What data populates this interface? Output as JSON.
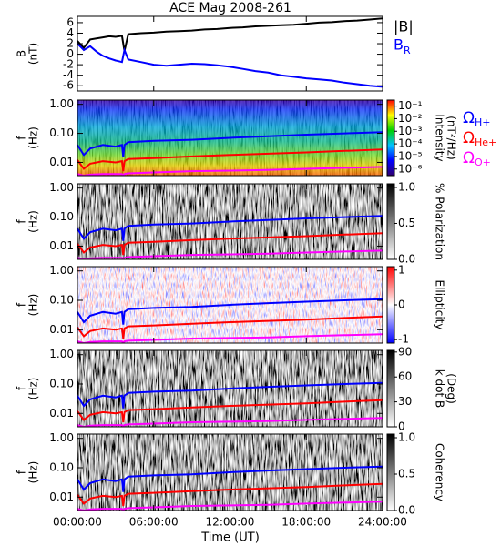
{
  "title": "ACE Mag 2008-261",
  "xlabel": "Time (UT)",
  "xlim": [
    0,
    24
  ],
  "xticks": [
    {
      "value": 0,
      "label": "00:00:00"
    },
    {
      "value": 6,
      "label": "06:00:00"
    },
    {
      "value": 12,
      "label": "12:00:00"
    },
    {
      "value": 18,
      "label": "18:00:00"
    },
    {
      "value": 24,
      "label": "24:00:00"
    }
  ],
  "gyrofrequencies": {
    "x": [
      0,
      0.5,
      1,
      2,
      3,
      3.5,
      3.6,
      3.7,
      4,
      6,
      9,
      12,
      15,
      18,
      21,
      24
    ],
    "series": [
      {
        "name": "Ω",
        "subscript": "H+",
        "color": "#0000ff",
        "values": [
          0.04,
          0.018,
          0.03,
          0.04,
          0.035,
          0.04,
          0.015,
          0.04,
          0.05,
          0.055,
          0.06,
          0.07,
          0.08,
          0.09,
          0.1,
          0.11
        ]
      },
      {
        "name": "Ω",
        "subscript": "He+",
        "color": "#ff0000",
        "values": [
          0.012,
          0.006,
          0.009,
          0.011,
          0.01,
          0.011,
          0.005,
          0.011,
          0.013,
          0.014,
          0.016,
          0.018,
          0.02,
          0.022,
          0.025,
          0.028
        ]
      },
      {
        "name": "Ω",
        "subscript": "O+",
        "color": "#ff00ff",
        "values": [
          0.004,
          0.0035,
          0.0038,
          0.004,
          0.004,
          0.004,
          0.0035,
          0.004,
          0.0042,
          0.0045,
          0.005,
          0.0052,
          0.0055,
          0.006,
          0.0065,
          0.007
        ]
      }
    ]
  },
  "chart_data": [
    {
      "type": "line",
      "ylabel": [
        "B",
        "(nT)"
      ],
      "ylim": [
        -7,
        7.2
      ],
      "yticks": [
        6,
        4,
        2,
        0,
        -2,
        -4,
        -6
      ],
      "x": [
        0,
        0.5,
        1,
        1.5,
        2,
        2.5,
        3,
        3.5,
        3.7,
        4,
        5,
        6,
        7,
        8,
        9,
        10,
        11,
        12,
        13,
        14,
        15,
        16,
        17,
        18,
        19,
        20,
        21,
        22,
        23,
        24
      ],
      "series": [
        {
          "name": "|B|",
          "color": "#000000",
          "values": [
            2.5,
            1.2,
            2.8,
            3.0,
            3.2,
            3.4,
            3.3,
            3.5,
            0.6,
            3.8,
            4.0,
            4.1,
            4.3,
            4.4,
            4.5,
            4.7,
            4.8,
            5.0,
            5.1,
            5.3,
            5.4,
            5.5,
            5.6,
            5.8,
            6.0,
            6.1,
            6.3,
            6.4,
            6.6,
            6.8
          ]
        },
        {
          "name": "B",
          "subscript": "R",
          "color": "#0000ff",
          "values": [
            2.0,
            0.8,
            1.5,
            0.5,
            -0.3,
            -0.8,
            -1.2,
            -1.5,
            0.8,
            -1.0,
            -1.5,
            -2.0,
            -2.2,
            -2.0,
            -1.8,
            -1.9,
            -2.1,
            -2.4,
            -2.8,
            -3.2,
            -3.5,
            -4.0,
            -4.3,
            -4.6,
            -4.8,
            -5.0,
            -5.4,
            -5.7,
            -6.0,
            -6.2
          ]
        }
      ]
    },
    {
      "type": "spectrogram",
      "texture": "intensity",
      "legend": true,
      "ylabel": [
        "f",
        "(Hz)"
      ],
      "log_y": true,
      "ylim": [
        0.0035,
        1.4
      ],
      "yticks": [
        {
          "value": 1,
          "label": "1.00"
        },
        {
          "value": 0.1,
          "label": "0.10"
        },
        {
          "value": 0.01,
          "label": "0.01"
        }
      ],
      "colorbar": {
        "label": [
          "Intensity",
          "(nT²/Hz)"
        ],
        "log": true,
        "lim": [
          3e-07,
          0.3
        ],
        "colors": [
          "#30006e",
          "#0000ff",
          "#00c0ff",
          "#00d000",
          "#ffff00",
          "#ff0000"
        ],
        "ticks": [
          {
            "value": 0.1,
            "label": "10⁻¹"
          },
          {
            "value": 0.01,
            "label": "10⁻²"
          },
          {
            "value": 0.001,
            "label": "10⁻³"
          },
          {
            "value": 0.0001,
            "label": "10⁻⁴"
          },
          {
            "value": 1e-05,
            "label": "10⁻⁵"
          },
          {
            "value": 1e-06,
            "label": "10⁻⁶"
          }
        ]
      }
    },
    {
      "type": "spectrogram",
      "texture": "gray",
      "ylabel": [
        "f",
        "(Hz)"
      ],
      "log_y": true,
      "ylim": [
        0.0035,
        1.4
      ],
      "yticks": [
        {
          "value": 1,
          "label": "1.00"
        },
        {
          "value": 0.1,
          "label": "0.10"
        },
        {
          "value": 0.01,
          "label": "0.01"
        }
      ],
      "colorbar": {
        "label": [
          "% Polarization"
        ],
        "log": false,
        "lim": [
          0,
          1.05
        ],
        "colors": [
          "#ffffff",
          "#000000"
        ],
        "ticks": [
          {
            "value": 1,
            "label": "1.0"
          },
          {
            "value": 0.5,
            "label": "0.5"
          },
          {
            "value": 0,
            "label": "0.0"
          }
        ]
      }
    },
    {
      "type": "spectrogram",
      "texture": "diverging",
      "ylabel": [
        "f",
        "(Hz)"
      ],
      "log_y": true,
      "ylim": [
        0.0035,
        1.4
      ],
      "yticks": [
        {
          "value": 1,
          "label": "1.00"
        },
        {
          "value": 0.1,
          "label": "0.10"
        },
        {
          "value": 0.01,
          "label": "0.01"
        }
      ],
      "colorbar": {
        "label": [
          "Ellipticity"
        ],
        "log": false,
        "lim": [
          -1.1,
          1.1
        ],
        "colors": [
          "#0000ff",
          "#ffffff",
          "#ff0000"
        ],
        "ticks": [
          1,
          0,
          -1
        ]
      }
    },
    {
      "type": "spectrogram",
      "texture": "gray",
      "ylabel": [
        "f",
        "(Hz)"
      ],
      "log_y": true,
      "ylim": [
        0.0035,
        1.4
      ],
      "yticks": [
        {
          "value": 1,
          "label": "1.00"
        },
        {
          "value": 0.1,
          "label": "0.10"
        },
        {
          "value": 0.01,
          "label": "0.01"
        }
      ],
      "colorbar": {
        "label": [
          "k dot B",
          "(Deg)"
        ],
        "log": false,
        "lim": [
          0,
          92
        ],
        "colors": [
          "#ffffff",
          "#000000"
        ],
        "ticks": [
          90,
          60,
          30,
          0
        ]
      }
    },
    {
      "type": "spectrogram",
      "texture": "gray",
      "ylabel": [
        "f",
        "(Hz)"
      ],
      "log_y": true,
      "ylim": [
        0.0035,
        1.4
      ],
      "yticks": [
        {
          "value": 1,
          "label": "1.00"
        },
        {
          "value": 0.1,
          "label": "0.10"
        },
        {
          "value": 0.01,
          "label": "0.01"
        }
      ],
      "colorbar": {
        "label": [
          "Coherency"
        ],
        "log": false,
        "lim": [
          0,
          1.05
        ],
        "colors": [
          "#ffffff",
          "#000000"
        ],
        "ticks": [
          {
            "value": 1,
            "label": "1.0"
          },
          {
            "value": 0.5,
            "label": "0.5"
          },
          {
            "value": 0,
            "label": "0.0"
          }
        ]
      }
    }
  ]
}
